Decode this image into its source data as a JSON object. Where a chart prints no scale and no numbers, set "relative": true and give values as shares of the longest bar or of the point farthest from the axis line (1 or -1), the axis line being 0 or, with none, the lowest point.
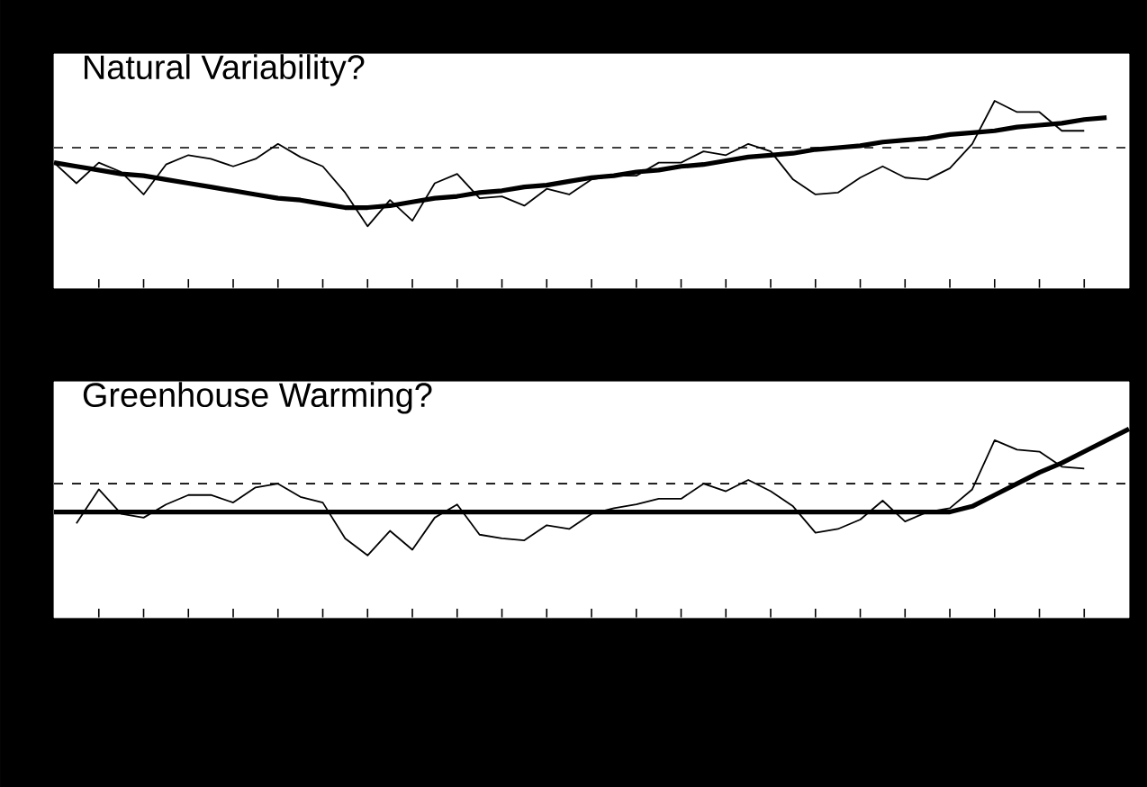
{
  "chart_data": [
    {
      "type": "line",
      "title": "Natural Variability?",
      "relative": true,
      "categories": [
        null,
        null,
        null,
        null,
        null,
        null,
        null,
        null,
        null,
        null,
        null,
        null,
        null,
        null,
        null,
        null,
        null,
        null,
        null,
        null,
        null,
        null,
        null,
        null,
        null,
        null,
        null,
        null,
        null,
        null,
        null,
        null,
        null,
        null,
        null,
        null,
        null,
        null,
        null,
        null,
        null,
        null,
        null,
        null,
        null,
        null,
        null,
        null,
        null
      ],
      "series": [
        {
          "color": "#000000",
          "values": [
            0.67,
            0.56,
            0.67,
            0.62,
            0.5,
            0.66,
            0.71,
            0.69,
            0.65,
            0.69,
            0.77,
            0.7,
            0.65,
            0.51,
            0.33,
            0.47,
            0.36,
            0.56,
            0.61,
            0.48,
            0.49,
            0.44,
            0.53,
            0.5,
            0.58,
            0.6,
            0.6,
            0.67,
            0.67,
            0.73,
            0.71,
            0.77,
            0.73,
            0.58,
            0.5,
            0.51,
            0.59,
            0.65,
            0.59,
            0.58,
            0.64,
            0.77,
            1.0,
            0.94,
            0.94,
            0.84,
            0.84,
            null,
            null
          ]
        },
        {
          "color": "#000000",
          "values": [
            0.67,
            0.65,
            0.63,
            0.61,
            0.6,
            0.58,
            0.56,
            0.54,
            0.52,
            0.5,
            0.48,
            0.47,
            0.45,
            0.43,
            0.43,
            0.44,
            0.46,
            0.48,
            0.49,
            0.51,
            0.52,
            0.54,
            0.55,
            0.57,
            0.59,
            0.6,
            0.62,
            0.63,
            0.65,
            0.66,
            0.68,
            0.7,
            0.71,
            0.72,
            0.74,
            0.75,
            0.76,
            0.78,
            0.79,
            0.8,
            0.82,
            0.83,
            0.84,
            0.86,
            0.87,
            0.88,
            0.9,
            0.91,
            null
          ]
        }
      ],
      "ref_lines": [
        {
          "axis": "y",
          "value": 0.75,
          "color": "#000000",
          "line_style": "dashed"
        }
      ]
    },
    {
      "type": "line",
      "title": "Greenhouse Warming?",
      "relative": true,
      "categories": [
        null,
        null,
        null,
        null,
        null,
        null,
        null,
        null,
        null,
        null,
        null,
        null,
        null,
        null,
        null,
        null,
        null,
        null,
        null,
        null,
        null,
        null,
        null,
        null,
        null,
        null,
        null,
        null,
        null,
        null,
        null,
        null,
        null,
        null,
        null,
        null,
        null,
        null,
        null,
        null,
        null,
        null,
        null,
        null,
        null,
        null,
        null,
        null,
        null
      ],
      "series": [
        {
          "color": "#000000",
          "values": [
            null,
            0.5,
            0.68,
            0.55,
            0.53,
            0.6,
            0.65,
            0.65,
            0.61,
            0.69,
            0.71,
            0.64,
            0.61,
            0.42,
            0.33,
            0.46,
            0.36,
            0.53,
            0.6,
            0.44,
            0.42,
            0.41,
            0.49,
            0.47,
            0.55,
            0.58,
            0.6,
            0.63,
            0.63,
            0.71,
            0.67,
            0.73,
            0.67,
            0.59,
            0.45,
            0.47,
            0.52,
            0.62,
            0.51,
            0.56,
            0.58,
            0.68,
            0.94,
            0.89,
            0.88,
            0.8,
            0.79,
            null,
            null
          ]
        },
        {
          "color": "#000000",
          "values": [
            0.56,
            0.56,
            0.56,
            0.56,
            0.56,
            0.56,
            0.56,
            0.56,
            0.56,
            0.56,
            0.56,
            0.56,
            0.56,
            0.56,
            0.56,
            0.56,
            0.56,
            0.56,
            0.56,
            0.56,
            0.56,
            0.56,
            0.56,
            0.56,
            0.56,
            0.56,
            0.56,
            0.56,
            0.56,
            0.56,
            0.56,
            0.56,
            0.56,
            0.56,
            0.56,
            0.56,
            0.56,
            0.56,
            0.56,
            0.56,
            0.56,
            0.59,
            0.65,
            0.71,
            0.77,
            0.82,
            0.88,
            0.94,
            1.0
          ]
        }
      ],
      "ref_lines": [
        {
          "axis": "y",
          "value": 0.71,
          "color": "#000000",
          "line_style": "dashed"
        }
      ]
    }
  ]
}
